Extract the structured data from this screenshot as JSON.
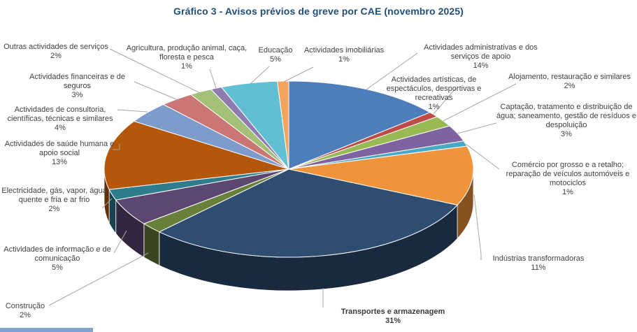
{
  "title": "Gráfico 3 - Avisos prévios de greve por CAE (novembro 2025)",
  "colors": {
    "title_text": "#1F4E79",
    "label_text": "#404040",
    "leader_line": "#A6A6A6",
    "background": "#FFFFFF"
  },
  "chart_data": {
    "type": "pie",
    "is_3d": true,
    "title": "Gráfico 3 - Avisos prévios de greve por CAE (novembro 2025)",
    "unit": "percent",
    "start_angle_deg": 0,
    "direction": "clockwise",
    "legend": "none",
    "slices": [
      {
        "label": "Actividades administrativas e dos serviços de apoio",
        "value": 14,
        "pct": "14%",
        "color": "#4D7EBB"
      },
      {
        "label": "Actividades artísticas, de espectáculos, desportivas e recreativas",
        "value": 1,
        "pct": "1%",
        "color": "#BE4B48"
      },
      {
        "label": "Alojamento, restauração e similares",
        "value": 2,
        "pct": "2%",
        "color": "#98B954"
      },
      {
        "label": "Captação, tratamento e distribuição de água; saneamento, gestão de resíduos e despoluição",
        "value": 3,
        "pct": "3%",
        "color": "#7E63A1"
      },
      {
        "label": "Comércio por grosso e a retalho; reparação de veículos automóveis e motociclos",
        "value": 1,
        "pct": "1%",
        "color": "#46AAC5"
      },
      {
        "label": "Indústrias transformadoras",
        "value": 11,
        "pct": "11%",
        "color": "#F0943C"
      },
      {
        "label": "Transportes e armazenagem",
        "value": 31,
        "pct": "31%",
        "color": "#2E4D71"
      },
      {
        "label": "Construção",
        "value": 2,
        "pct": "2%",
        "color": "#68803A"
      },
      {
        "label": "Actividades de informação e de comunicação",
        "value": 5,
        "pct": "5%",
        "color": "#5C4672"
      },
      {
        "label": "Electricidade, gás, vapor, água quente e fria e ar frio",
        "value": 2,
        "pct": "2%",
        "color": "#2E7C8E"
      },
      {
        "label": "Actividades de saúde humana e apoio social",
        "value": 13,
        "pct": "13%",
        "color": "#B4570B"
      },
      {
        "label": "Actividades de consultoria, científicas, técnicas e similares",
        "value": 4,
        "pct": "4%",
        "color": "#7D9BCB"
      },
      {
        "label": "Actividades financeiras e de seguros",
        "value": 3,
        "pct": "3%",
        "color": "#CA7674"
      },
      {
        "label": "Outras actividades de serviços",
        "value": 2,
        "pct": "2%",
        "color": "#A3C079"
      },
      {
        "label": "Agricultura, produção animal, caça, floresta e pesca",
        "value": 1,
        "pct": "1%",
        "color": "#8E7CB1"
      },
      {
        "label": "Educação",
        "value": 5,
        "pct": "5%",
        "color": "#62BED1"
      },
      {
        "label": "Actividades imobiliárias",
        "value": 1,
        "pct": "1%",
        "color": "#F2A45D"
      }
    ]
  }
}
